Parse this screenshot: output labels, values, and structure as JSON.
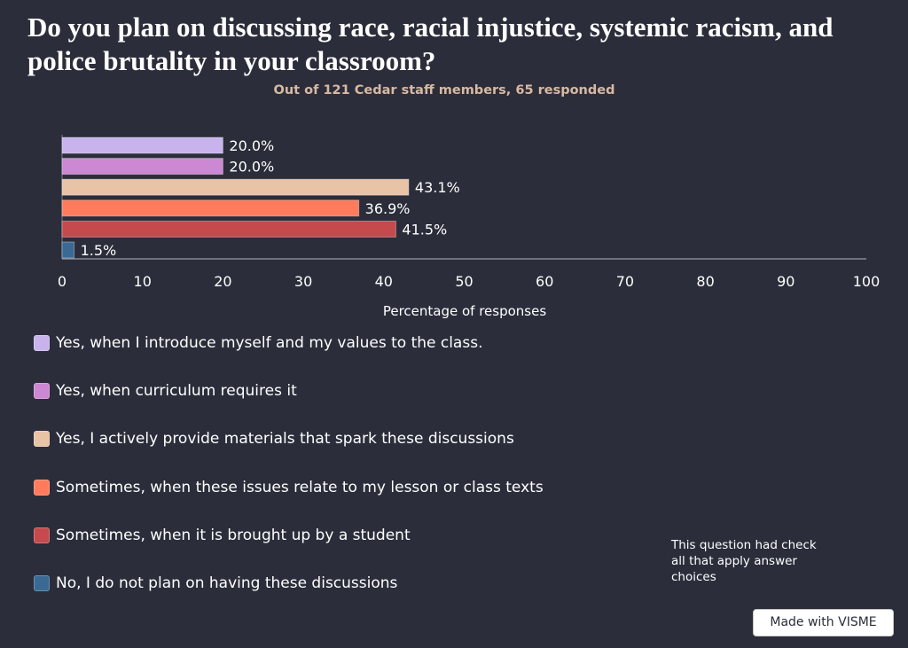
{
  "title": "Do you plan on discussing race, racial injustice, systemic racism, and police brutality in your classroom?",
  "subtitle": "Out of 121 Cedar staff members, 65 responded",
  "note": "This question had check all that apply answer choices",
  "badge": "Made with VISME",
  "chart_data": {
    "type": "bar",
    "orientation": "horizontal",
    "categories": [
      "Yes, when I introduce myself and my values to the class.",
      "Yes, when curriculum requires it",
      "Yes, I actively provide materials that spark these discussions",
      "Sometimes, when these issues relate to my lesson or class texts",
      "Sometimes, when it is brought up by a student",
      "No, I do not plan on having these discussions"
    ],
    "values": [
      20.0,
      20.0,
      43.1,
      36.9,
      41.5,
      1.5
    ],
    "value_labels": [
      "20.0%",
      "20.0%",
      "43.1%",
      "36.9%",
      "41.5%",
      "1.5%"
    ],
    "colors": [
      "#c9b3ec",
      "#cc88d3",
      "#e8c3a6",
      "#ff7b5c",
      "#c54a4e",
      "#3a6a94"
    ],
    "xlabel": "Percentage of responses",
    "ylabel": "",
    "xlim": [
      0,
      100
    ],
    "xticks": [
      0,
      10,
      20,
      30,
      40,
      50,
      60,
      70,
      80,
      90,
      100
    ],
    "xtick_labels": [
      "0",
      "10",
      "20",
      "30",
      "40",
      "50",
      "60",
      "70",
      "80",
      "90",
      "100"
    ],
    "grid": false,
    "legend_position": "bottom-left"
  }
}
